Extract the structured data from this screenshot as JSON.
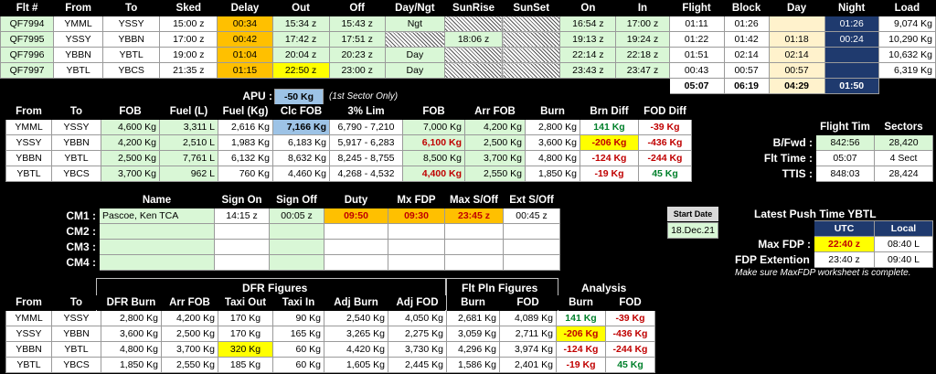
{
  "flights": {
    "headers": [
      "Flt #",
      "From",
      "To",
      "Sked",
      "Delay",
      "Out",
      "Off",
      "Day/Ngt",
      "SunRise",
      "SunSet",
      "On",
      "In",
      "Flight",
      "Block",
      "Day",
      "Night",
      "Load"
    ],
    "rows": [
      [
        "QF7994",
        "YMML",
        "YSSY",
        "15:00 z",
        "00:34",
        "15:34 z",
        "15:43 z",
        "Ngt",
        "",
        "",
        "16:54 z",
        "17:00 z",
        "01:11",
        "01:26",
        "",
        "01:26",
        "9,074 Kg"
      ],
      [
        "QF7995",
        "YSSY",
        "YBBN",
        "17:00 z",
        "00:42",
        "17:42 z",
        "17:51 z",
        "",
        "18:06 z",
        "",
        "19:13 z",
        "19:24 z",
        "01:22",
        "01:42",
        "01:18",
        "00:24",
        "10,290 Kg"
      ],
      [
        "QF7996",
        "YBBN",
        "YBTL",
        "19:00 z",
        "01:04",
        "20:04 z",
        "20:23 z",
        "Day",
        "",
        "",
        "22:14 z",
        "22:18 z",
        "01:51",
        "02:14",
        "02:14",
        "",
        "10,632 Kg"
      ],
      [
        "QF7997",
        "YBTL",
        "YBCS",
        "21:35 z",
        "01:15",
        "22:50 z",
        "23:00 z",
        "Day",
        "",
        "",
        "23:43 z",
        "23:47 z",
        "00:43",
        "00:57",
        "00:57",
        "",
        "6,319 Kg"
      ]
    ],
    "totals": [
      "05:07",
      "06:19",
      "04:29",
      "01:50"
    ]
  },
  "apu": {
    "label": "APU :",
    "value": "-50 Kg",
    "note": "(1st Sector Only)"
  },
  "fuel": {
    "headers": [
      "From",
      "To",
      "FOB",
      "Fuel (L)",
      "Fuel (Kg)",
      "Clc FOB",
      "3% Lim",
      "FOB",
      "Arr FOB",
      "Burn",
      "Brn Diff",
      "FOD Diff"
    ],
    "rows": [
      [
        "YMML",
        "YSSY",
        "4,600 Kg",
        "3,311 L",
        "2,616 Kg",
        "7,166 Kg",
        "6,790 - 7,210",
        "7,000 Kg",
        "4,200 Kg",
        "2,800 Kg",
        "141 Kg",
        "-39 Kg"
      ],
      [
        "YSSY",
        "YBBN",
        "4,200 Kg",
        "2,510 L",
        "1,983 Kg",
        "6,183 Kg",
        "5,917 - 6,283",
        "6,100 Kg",
        "2,500 Kg",
        "3,600 Kg",
        "-206 Kg",
        "-436 Kg"
      ],
      [
        "YBBN",
        "YBTL",
        "2,500 Kg",
        "7,761 L",
        "6,132 Kg",
        "8,632 Kg",
        "8,245 - 8,755",
        "8,500 Kg",
        "3,700 Kg",
        "4,800 Kg",
        "-124 Kg",
        "-244 Kg"
      ],
      [
        "YBTL",
        "YBCS",
        "3,700 Kg",
        "962 L",
        "760 Kg",
        "4,460 Kg",
        "4,268 - 4,532",
        "4,400 Kg",
        "2,550 Kg",
        "1,850 Kg",
        "-19 Kg",
        "45 Kg"
      ]
    ]
  },
  "summary": {
    "headers": [
      "Flight Tim",
      "Sectors"
    ],
    "rows": [
      {
        "label": "B/Fwd :",
        "a": "842:56",
        "b": "28,420"
      },
      {
        "label": "Flt Time :",
        "a": "05:07",
        "b": "4 Sect"
      },
      {
        "label": "TTIS :",
        "a": "848:03",
        "b": "28,424"
      }
    ]
  },
  "crew": {
    "headers": [
      "Name",
      "Sign On",
      "Sign Off",
      "Duty",
      "Mx FDP",
      "Max S/Off",
      "Ext S/Off"
    ],
    "rows": [
      {
        "label": "CM1 :",
        "name": "Pascoe, Ken TCA",
        "on": "14:15 z",
        "off": "00:05 z",
        "duty": "09:50",
        "fdp": "09:30",
        "max": "23:45 z",
        "ext": "00:45 z"
      },
      {
        "label": "CM2 :",
        "name": "",
        "on": "",
        "off": "",
        "duty": "",
        "fdp": "",
        "max": "",
        "ext": ""
      },
      {
        "label": "CM3 :",
        "name": "",
        "on": "",
        "off": "",
        "duty": "",
        "fdp": "",
        "max": "",
        "ext": ""
      },
      {
        "label": "CM4 :",
        "name": "",
        "on": "",
        "off": "",
        "duty": "",
        "fdp": "",
        "max": "",
        "ext": ""
      }
    ]
  },
  "start": {
    "label": "Start Date",
    "value": "18.Dec.21"
  },
  "push": {
    "title": "Latest Push Time YBTL",
    "headers": [
      "UTC",
      "Local"
    ],
    "rows": [
      {
        "label": "Max FDP :",
        "utc": "22:40 z",
        "local": "08:40 L"
      },
      {
        "label": "FDP Extention :",
        "utc": "23:40 z",
        "local": "09:40 L"
      }
    ],
    "note": "Make sure MaxFDP worksheet is complete."
  },
  "dfr": {
    "group_dfr": "DFR Figures",
    "group_fp": "Flt Pln Figures",
    "group_an": "Analysis",
    "headers": [
      "From",
      "To",
      "DFR Burn",
      "Arr FOB",
      "Taxi Out",
      "Taxi In",
      "Adj Burn",
      "Adj FOD",
      "Burn",
      "FOD",
      "Burn",
      "FOD"
    ],
    "rows": [
      [
        "YMML",
        "YSSY",
        "2,800 Kg",
        "4,200 Kg",
        "170 Kg",
        "90 Kg",
        "2,540 Kg",
        "4,050 Kg",
        "2,681 Kg",
        "4,089 Kg",
        "141 Kg",
        "-39 Kg"
      ],
      [
        "YSSY",
        "YBBN",
        "3,600 Kg",
        "2,500 Kg",
        "170 Kg",
        "165 Kg",
        "3,265 Kg",
        "2,275 Kg",
        "3,059 Kg",
        "2,711 Kg",
        "-206 Kg",
        "-436 Kg"
      ],
      [
        "YBBN",
        "YBTL",
        "4,800 Kg",
        "3,700 Kg",
        "320 Kg",
        "60 Kg",
        "4,420 Kg",
        "3,730 Kg",
        "4,296 Kg",
        "3,974 Kg",
        "-124 Kg",
        "-244 Kg"
      ],
      [
        "YBTL",
        "YBCS",
        "1,850 Kg",
        "2,550 Kg",
        "185 Kg",
        "60 Kg",
        "1,605 Kg",
        "2,445 Kg",
        "1,586 Kg",
        "2,401 Kg",
        "-19 Kg",
        "45 Kg"
      ]
    ]
  }
}
